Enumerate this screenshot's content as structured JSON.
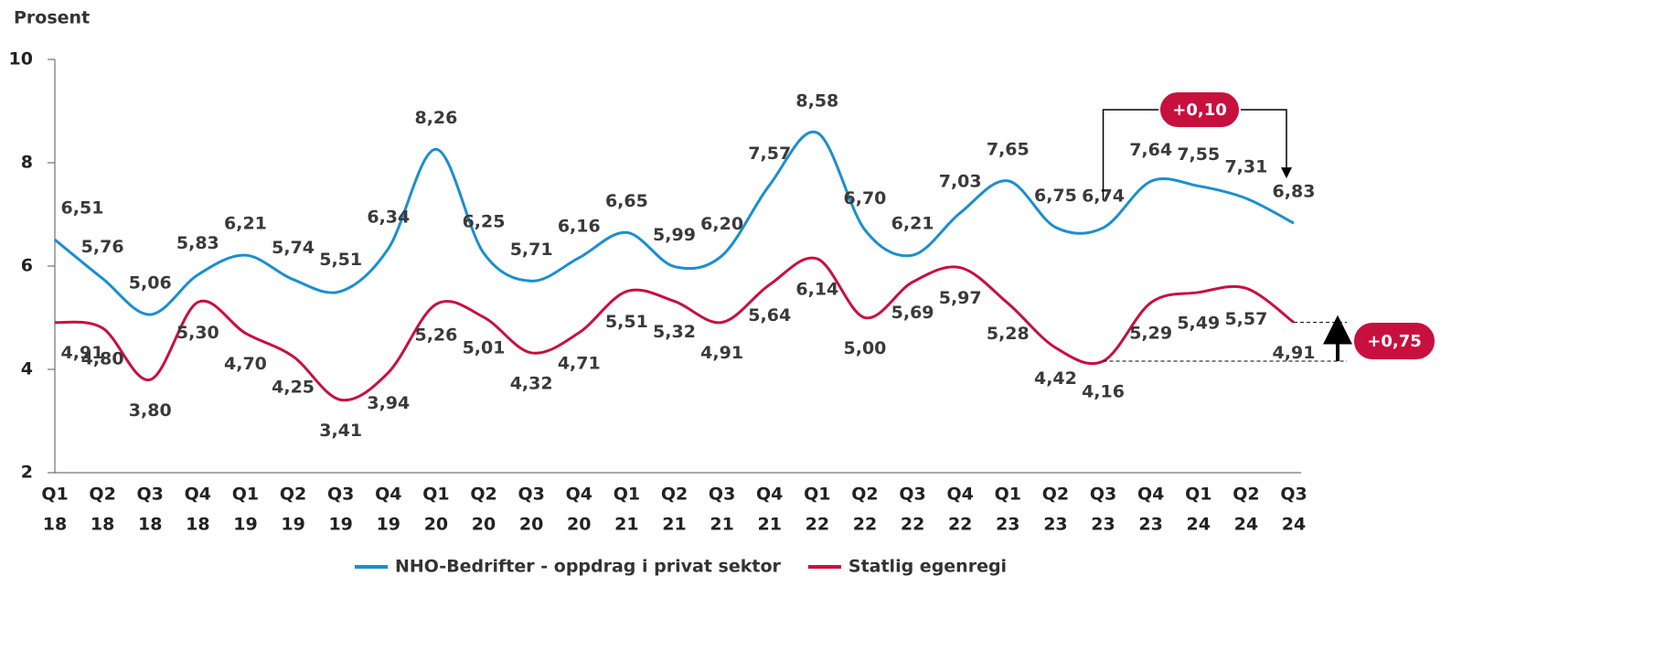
{
  "chart_data": {
    "type": "line",
    "y_label": "Prosent",
    "categories": [
      [
        "Q1",
        "18"
      ],
      [
        "Q2",
        "18"
      ],
      [
        "Q3",
        "18"
      ],
      [
        "Q4",
        "18"
      ],
      [
        "Q1",
        "19"
      ],
      [
        "Q2",
        "19"
      ],
      [
        "Q3",
        "19"
      ],
      [
        "Q4",
        "19"
      ],
      [
        "Q1",
        "20"
      ],
      [
        "Q2",
        "20"
      ],
      [
        "Q3",
        "20"
      ],
      [
        "Q4",
        "20"
      ],
      [
        "Q1",
        "21"
      ],
      [
        "Q2",
        "21"
      ],
      [
        "Q3",
        "21"
      ],
      [
        "Q4",
        "21"
      ],
      [
        "Q1",
        "22"
      ],
      [
        "Q2",
        "22"
      ],
      [
        "Q3",
        "22"
      ],
      [
        "Q4",
        "22"
      ],
      [
        "Q1",
        "23"
      ],
      [
        "Q2",
        "23"
      ],
      [
        "Q3",
        "23"
      ],
      [
        "Q4",
        "23"
      ],
      [
        "Q1",
        "24"
      ],
      [
        "Q2",
        "24"
      ],
      [
        "Q3",
        "24"
      ]
    ],
    "series": [
      {
        "name": "NHO-Bedrifter - oppdrag i privat sektor",
        "color": "#1a8fd0",
        "values": [
          6.51,
          5.76,
          5.06,
          5.83,
          6.21,
          5.74,
          5.51,
          6.34,
          8.26,
          6.25,
          5.71,
          6.16,
          6.65,
          5.99,
          6.2,
          7.57,
          8.58,
          6.7,
          6.21,
          7.03,
          7.65,
          6.75,
          6.74,
          7.64,
          7.55,
          7.31,
          6.83
        ],
        "value_labels": [
          "6,51",
          "5,76",
          "5,06",
          "5,83",
          "6,21",
          "5,74",
          "5,51",
          "6,34",
          "8,26",
          "6,25",
          "5,71",
          "6,16",
          "6,65",
          "5,99",
          "6,20",
          "7,57",
          "8,58",
          "6,70",
          "6,21",
          "7,03",
          "7,65",
          "6,75",
          "6,74",
          "7,64",
          "7,55",
          "7,31",
          "6,83"
        ]
      },
      {
        "name": "Statlig egenregi",
        "color": "#c8103e",
        "values": [
          4.91,
          4.8,
          3.8,
          5.3,
          4.7,
          4.25,
          3.41,
          3.94,
          5.26,
          5.01,
          4.32,
          4.71,
          5.51,
          5.32,
          4.91,
          5.64,
          6.14,
          5.0,
          5.69,
          5.97,
          5.28,
          4.42,
          4.16,
          5.29,
          5.49,
          5.57,
          4.91
        ],
        "value_labels": [
          "4,91",
          "4,80",
          "3,80",
          "5,30",
          "4,70",
          "4,25",
          "3,41",
          "3,94",
          "5,26",
          "5,01",
          "4,32",
          "4,71",
          "5,51",
          "5,32",
          "4,91",
          "5,64",
          "6,14",
          "5,00",
          "5,69",
          "5,97",
          "5,28",
          "4,42",
          "4,16",
          "5,29",
          "5,49",
          "5,57",
          "4,91"
        ]
      }
    ],
    "ylim": [
      2,
      10
    ],
    "yticks": [
      2,
      4,
      6,
      8,
      10
    ],
    "annotations": [
      "+0,10",
      "+0,75"
    ],
    "legend": "bottom"
  }
}
